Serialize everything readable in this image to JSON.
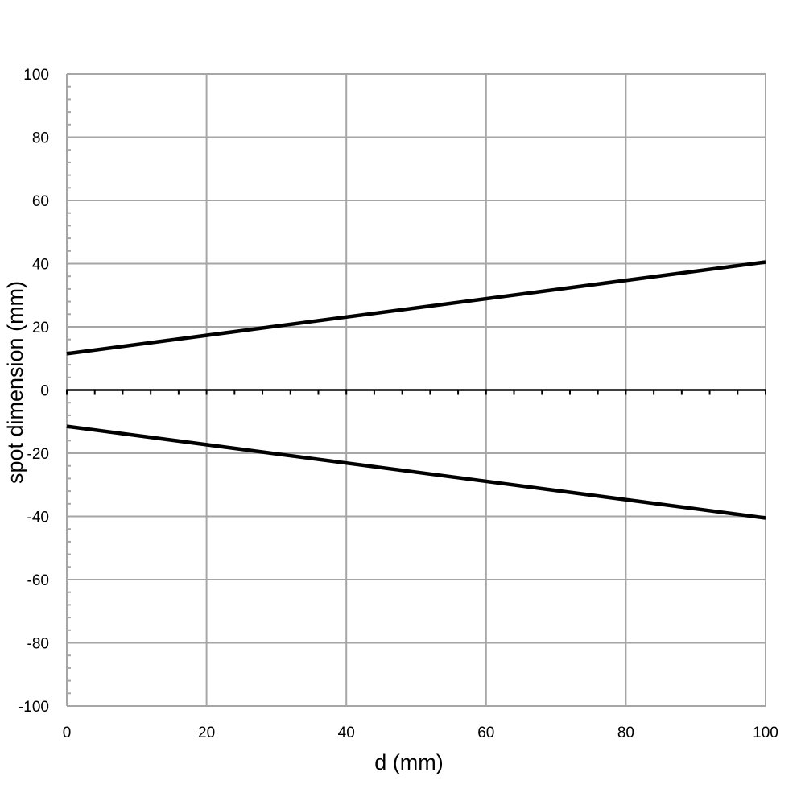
{
  "chart_data": {
    "type": "line",
    "xlabel": "d (mm)",
    "ylabel": "spot dimension (mm)",
    "xlim": [
      0,
      100
    ],
    "ylim": [
      -100,
      100
    ],
    "x_ticks": [
      "0",
      "20",
      "40",
      "60",
      "80",
      "100"
    ],
    "y_ticks": [
      "100",
      "80",
      "60",
      "40",
      "20",
      "0",
      "-20",
      "-40",
      "-60",
      "-80",
      "-100"
    ],
    "grid": true,
    "series": [
      {
        "x": [
          0,
          100
        ],
        "y": [
          11.5,
          40.5
        ],
        "color": "#000000"
      },
      {
        "x": [
          0,
          100
        ],
        "y": [
          -11.5,
          -40.5
        ],
        "color": "#000000"
      }
    ],
    "colors": {
      "grid": "#a6a6a6",
      "axis": "#000000",
      "line": "#000000"
    }
  }
}
